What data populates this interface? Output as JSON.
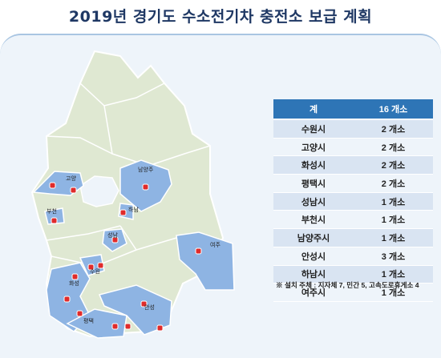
{
  "title": "2019년 경기도 수소전기차 충전소 보급 계획",
  "table": {
    "header": [
      "계",
      "16 개소"
    ],
    "rows": [
      {
        "city": "수원시",
        "count": "2 개소"
      },
      {
        "city": "고양시",
        "count": "2 개소"
      },
      {
        "city": "화성시",
        "count": "2 개소"
      },
      {
        "city": "평택시",
        "count": "2 개소"
      },
      {
        "city": "성남시",
        "count": "1 개소"
      },
      {
        "city": "부천시",
        "count": "1 개소"
      },
      {
        "city": "남양주시",
        "count": "1 개소"
      },
      {
        "city": "안성시",
        "count": "3 개소"
      },
      {
        "city": "하남시",
        "count": "1 개소"
      },
      {
        "city": "여주시",
        "count": "1 개소"
      }
    ]
  },
  "note": "※ 설치 주체 : 지자체 7, 민간 5, 고속도로휴게소 4",
  "map_labels": {
    "goyang": "고양",
    "namyangju": "남양주",
    "bucheon": "부천",
    "hanam": "하남",
    "seongnam": "성남",
    "yeoju": "여주",
    "suwon": "수원",
    "hwaseong": "화성",
    "pyeongtaek": "평택",
    "anseong": "안성"
  },
  "colors": {
    "title": "#1f3864",
    "highlight_region": "#8eb4e3",
    "base_region": "#dfe8d2",
    "station_marker": "#e02b2b",
    "table_header": "#2e75b6"
  }
}
